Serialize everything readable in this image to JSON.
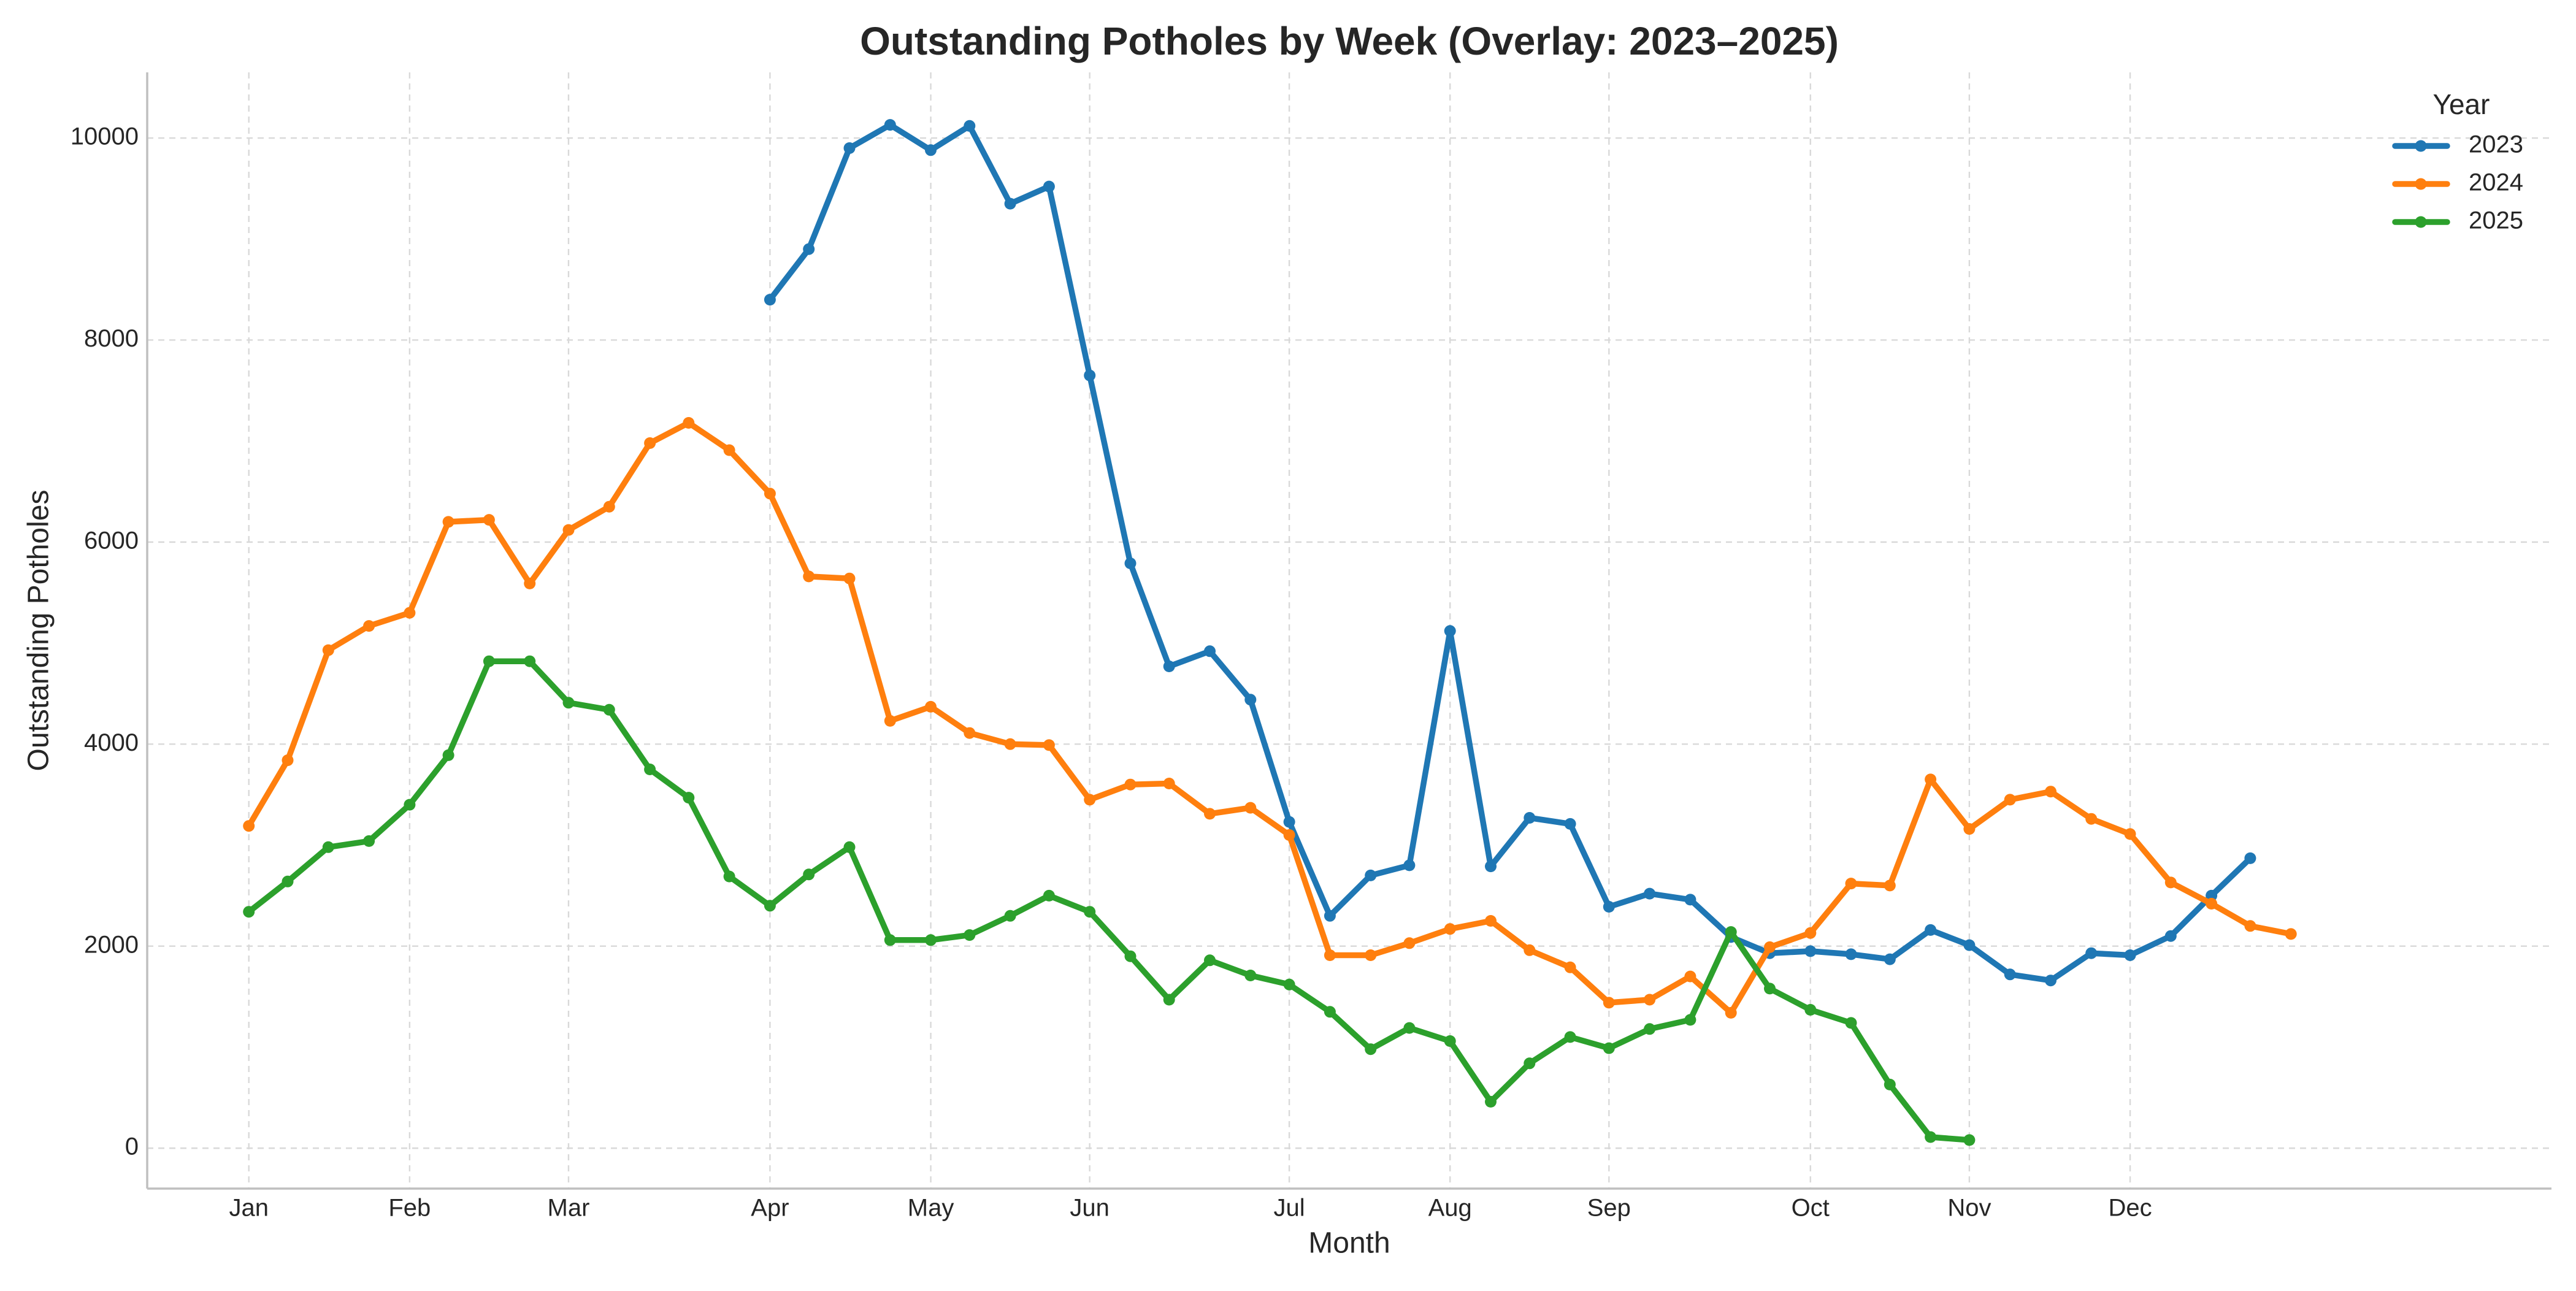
{
  "chart_data": {
    "type": "line",
    "title": "Outstanding Potholes by Week (Overlay: 2023–2025)",
    "xlabel": "Month",
    "ylabel": "Outstanding Potholes",
    "x_unit": "day of year",
    "xlim": [
      -30,
      1271
    ],
    "ylim": [
      -400,
      10650
    ],
    "x_ticks": [
      {
        "label": "Jan",
        "value": 25
      },
      {
        "label": "Feb",
        "value": 112
      },
      {
        "label": "Mar",
        "value": 198
      },
      {
        "label": "Apr",
        "value": 307
      },
      {
        "label": "May",
        "value": 394
      },
      {
        "label": "Jun",
        "value": 480
      },
      {
        "label": "Jul",
        "value": 588
      },
      {
        "label": "Aug",
        "value": 675
      },
      {
        "label": "Sep",
        "value": 761
      },
      {
        "label": "Oct",
        "value": 870
      },
      {
        "label": "Nov",
        "value": 956
      },
      {
        "label": "Dec",
        "value": 1043
      }
    ],
    "y_ticks": [
      0,
      2000,
      4000,
      6000,
      8000,
      10000
    ],
    "grid": true,
    "legend": {
      "title": "Year",
      "placement": "top-right"
    },
    "series": [
      {
        "name": "2023",
        "color": "#1f77b4",
        "x": [
          307,
          328,
          350,
          372,
          394,
          415,
          437,
          458,
          480,
          502,
          523,
          545,
          567,
          588,
          610,
          632,
          653,
          675,
          697,
          718,
          740,
          761,
          783,
          805,
          827,
          848,
          870,
          892,
          913,
          935,
          956,
          978,
          1000,
          1022,
          1043,
          1065,
          1087,
          1108
        ],
        "y": [
          8400,
          8900,
          9900,
          10130,
          9880,
          10120,
          9350,
          9520,
          7650,
          5790,
          4770,
          4920,
          4440,
          3230,
          2300,
          2700,
          2800,
          5120,
          2790,
          3270,
          3210,
          2390,
          2520,
          2460,
          2090,
          1930,
          1950,
          1920,
          1870,
          2160,
          2010,
          1720,
          1660,
          1930,
          1910,
          2100,
          2500,
          2870
        ]
      },
      {
        "name": "2024",
        "color": "#ff7f0e",
        "x": [
          25,
          46,
          68,
          90,
          112,
          133,
          155,
          177,
          198,
          220,
          242,
          263,
          285,
          307,
          328,
          350,
          372,
          394,
          415,
          437,
          458,
          480,
          502,
          523,
          545,
          567,
          588,
          610,
          632,
          653,
          675,
          697,
          718,
          740,
          761,
          783,
          805,
          827,
          848,
          870,
          892,
          913,
          935,
          956,
          978,
          1000,
          1022,
          1043,
          1065,
          1087,
          1108,
          1130
        ],
        "y": [
          3190,
          3840,
          4930,
          5170,
          5300,
          6200,
          6220,
          5590,
          6120,
          6350,
          6980,
          7180,
          6910,
          6480,
          5660,
          5640,
          4230,
          4370,
          4110,
          4000,
          3990,
          3450,
          3600,
          3610,
          3310,
          3370,
          3100,
          1910,
          1910,
          2030,
          2170,
          2250,
          1960,
          1790,
          1440,
          1470,
          1700,
          1340,
          1990,
          2130,
          2620,
          2600,
          3650,
          3160,
          3450,
          3530,
          3260,
          3110,
          2630,
          2420,
          2200,
          2120
        ]
      },
      {
        "name": "2025",
        "color": "#2ca02c",
        "x": [
          25,
          46,
          68,
          90,
          112,
          133,
          155,
          177,
          198,
          220,
          242,
          263,
          285,
          307,
          328,
          350,
          372,
          394,
          415,
          437,
          458,
          480,
          502,
          523,
          545,
          567,
          588,
          610,
          632,
          653,
          675,
          697,
          718,
          740,
          761,
          783,
          805,
          827,
          848,
          870,
          892,
          913,
          935,
          956
        ],
        "y": [
          2340,
          2640,
          2980,
          3040,
          3400,
          3890,
          4820,
          4820,
          4410,
          4340,
          3750,
          3470,
          2690,
          2400,
          2710,
          2980,
          2060,
          2060,
          2110,
          2300,
          2500,
          2340,
          1900,
          1470,
          1860,
          1710,
          1620,
          1350,
          980,
          1190,
          1060,
          460,
          840,
          1100,
          990,
          1180,
          1270,
          2140,
          1580,
          1370,
          1240,
          630,
          110,
          80
        ]
      }
    ]
  }
}
